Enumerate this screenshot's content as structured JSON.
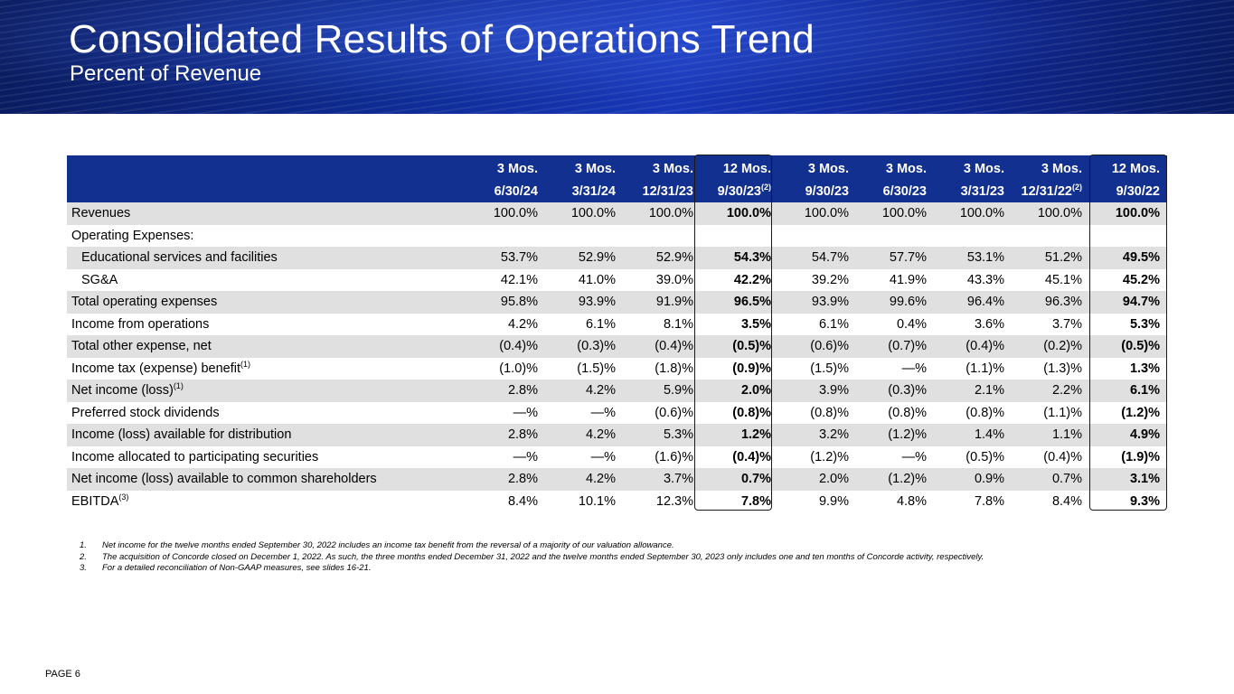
{
  "header": {
    "title": "Consolidated Results of Operations Trend",
    "subtitle": "Percent of Revenue"
  },
  "table": {
    "columns": [
      {
        "period": "3 Mos.",
        "date": "6/30/24",
        "sup": ""
      },
      {
        "period": "3 Mos.",
        "date": "3/31/24",
        "sup": ""
      },
      {
        "period": "3 Mos.",
        "date": "12/31/23",
        "sup": ""
      },
      {
        "period": "12 Mos.",
        "date": "9/30/23",
        "sup": "(2)"
      },
      {
        "period": "3 Mos.",
        "date": "9/30/23",
        "sup": ""
      },
      {
        "period": "3 Mos.",
        "date": "6/30/23",
        "sup": ""
      },
      {
        "period": "3 Mos.",
        "date": "3/31/23",
        "sup": ""
      },
      {
        "period": "3 Mos.",
        "date": "12/31/22",
        "sup": "(2)"
      },
      {
        "period": "12 Mos.",
        "date": "9/30/22",
        "sup": ""
      }
    ],
    "rows": [
      {
        "label": "Revenues",
        "sup": "",
        "values": [
          "100.0%",
          "100.0%",
          "100.0%",
          "100.0%",
          "100.0%",
          "100.0%",
          "100.0%",
          "100.0%",
          "100.0%"
        ]
      },
      {
        "label": "Operating Expenses:",
        "sup": "",
        "values": [
          "",
          "",
          "",
          "",
          "",
          "",
          "",
          "",
          ""
        ]
      },
      {
        "label": "Educational services and facilities",
        "sup": "",
        "values": [
          "53.7%",
          "52.9%",
          "52.9%",
          "54.3%",
          "54.7%",
          "57.7%",
          "53.1%",
          "51.2%",
          "49.5%"
        ]
      },
      {
        "label": "SG&A",
        "sup": "",
        "values": [
          "42.1%",
          "41.0%",
          "39.0%",
          "42.2%",
          "39.2%",
          "41.9%",
          "43.3%",
          "45.1%",
          "45.2%"
        ]
      },
      {
        "label": "Total operating expenses",
        "sup": "",
        "values": [
          "95.8%",
          "93.9%",
          "91.9%",
          "96.5%",
          "93.9%",
          "99.6%",
          "96.4%",
          "96.3%",
          "94.7%"
        ]
      },
      {
        "label": "Income from operations",
        "sup": "",
        "values": [
          "4.2%",
          "6.1%",
          "8.1%",
          "3.5%",
          "6.1%",
          "0.4%",
          "3.6%",
          "3.7%",
          "5.3%"
        ]
      },
      {
        "label": "Total other expense, net",
        "sup": "",
        "values": [
          "(0.4)%",
          "(0.3)%",
          "(0.4)%",
          "(0.5)%",
          "(0.6)%",
          "(0.7)%",
          "(0.4)%",
          "(0.2)%",
          "(0.5)%"
        ]
      },
      {
        "label": "Income tax (expense) benefit",
        "sup": "(1)",
        "values": [
          "(1.0)%",
          "(1.5)%",
          "(1.8)%",
          "(0.9)%",
          "(1.5)%",
          "—%",
          "(1.1)%",
          "(1.3)%",
          "1.3%"
        ]
      },
      {
        "label": "Net income (loss)",
        "sup": "(1)",
        "values": [
          "2.8%",
          "4.2%",
          "5.9%",
          "2.0%",
          "3.9%",
          "(0.3)%",
          "2.1%",
          "2.2%",
          "6.1%"
        ]
      },
      {
        "label": "Preferred stock dividends",
        "sup": "",
        "values": [
          "—%",
          "—%",
          "(0.6)%",
          "(0.8)%",
          "(0.8)%",
          "(0.8)%",
          "(0.8)%",
          "(1.1)%",
          "(1.2)%"
        ]
      },
      {
        "label": "Income (loss) available for distribution",
        "sup": "",
        "values": [
          "2.8%",
          "4.2%",
          "5.3%",
          "1.2%",
          "3.2%",
          "(1.2)%",
          "1.4%",
          "1.1%",
          "4.9%"
        ]
      },
      {
        "label": "Income allocated to participating securities",
        "sup": "",
        "values": [
          "—%",
          "—%",
          "(1.6)%",
          "(0.4)%",
          "(1.2)%",
          "—%",
          "(0.5)%",
          "(0.4)%",
          "(1.9)%"
        ]
      },
      {
        "label": "Net income (loss) available to common shareholders",
        "sup": "",
        "values": [
          "2.8%",
          "4.2%",
          "3.7%",
          "0.7%",
          "2.0%",
          "(1.2)%",
          "0.9%",
          "0.7%",
          "3.1%"
        ]
      },
      {
        "label": "EBITDA",
        "sup": "(3)",
        "values": [
          "8.4%",
          "10.1%",
          "12.3%",
          "7.8%",
          "9.9%",
          "4.8%",
          "7.8%",
          "8.4%",
          "9.3%"
        ]
      }
    ]
  },
  "footnotes": [
    {
      "num": "1.",
      "text": "Net income for the twelve months ended September 30, 2022 includes an income tax benefit from the reversal of a majority of our valuation allowance."
    },
    {
      "num": "2.",
      "text": "The acquisition of Concorde closed on December 1, 2022. As such, the three months ended December 31, 2022 and the twelve months ended September 30, 2023 only includes one and ten months of Concorde activity, respectively."
    },
    {
      "num": "3.",
      "text": "For a detailed reconciliation of Non-GAAP measures, see slides 16-21."
    }
  ],
  "footer": {
    "page": "PAGE 6"
  }
}
